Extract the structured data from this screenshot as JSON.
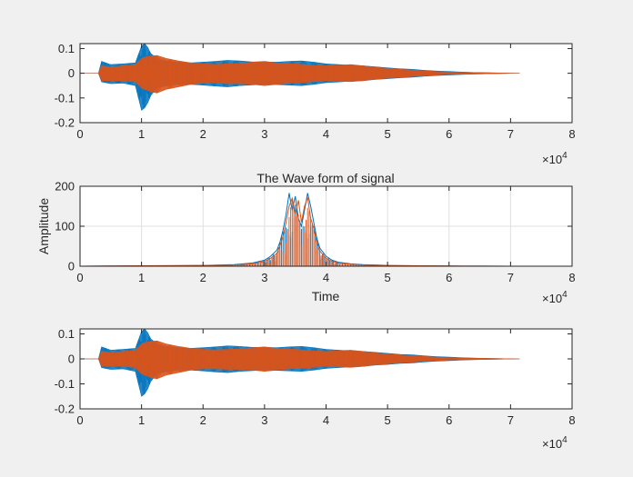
{
  "figure": {
    "background": "#f0f0f0",
    "axes_background": "#ffffff",
    "axis_color": "#262626",
    "grid_color": "#dfdfdf"
  },
  "chart_data": [
    {
      "type": "line",
      "title": "",
      "xlabel": "",
      "ylabel": "",
      "xlim": [
        0,
        80000
      ],
      "ylim": [
        -0.2,
        0.12
      ],
      "xticks": [
        0,
        10000,
        20000,
        30000,
        40000,
        50000,
        60000,
        70000,
        80000
      ],
      "xtick_labels": [
        "0",
        "1",
        "2",
        "3",
        "4",
        "5",
        "6",
        "7",
        "8"
      ],
      "yticks": [
        -0.2,
        -0.1,
        0,
        0.1
      ],
      "ytick_labels": [
        "-0.2",
        "-0.1",
        "0",
        "0.1"
      ],
      "x_exponent_label": "×10",
      "x_exponent_power": "4",
      "grid": false,
      "series": [
        {
          "color": "#0072bd",
          "x": [
            0,
            3000,
            3500,
            5000,
            7000,
            9000,
            10000,
            10500,
            11000,
            11500,
            12500,
            14000,
            16000,
            18000,
            20000,
            22000,
            24000,
            26000,
            28000,
            30000,
            32000,
            34000,
            36000,
            38000,
            40000,
            42000,
            44000,
            46000,
            48000,
            50000,
            52000,
            54000,
            56000,
            58000,
            60000,
            62000,
            64000,
            66000,
            68000,
            70000,
            71500
          ],
          "values": [
            0,
            0,
            0.048,
            0.035,
            0.038,
            0.042,
            0.11,
            0.12,
            0.105,
            0.08,
            0.06,
            0.05,
            0.045,
            0.042,
            0.045,
            0.048,
            0.052,
            0.05,
            0.046,
            0.046,
            0.045,
            0.048,
            0.05,
            0.045,
            0.038,
            0.035,
            0.032,
            0.03,
            0.026,
            0.022,
            0.018,
            0.016,
            0.012,
            0.009,
            0.007,
            0.005,
            0.003,
            0.002,
            0.001,
            0.0005,
            0
          ],
          "lower": [
            0,
            0,
            -0.035,
            -0.042,
            -0.04,
            -0.05,
            -0.15,
            -0.14,
            -0.12,
            -0.09,
            -0.06,
            -0.05,
            -0.045,
            -0.045,
            -0.048,
            -0.052,
            -0.055,
            -0.05,
            -0.047,
            -0.045,
            -0.046,
            -0.048,
            -0.05,
            -0.045,
            -0.038,
            -0.035,
            -0.032,
            -0.03,
            -0.025,
            -0.022,
            -0.018,
            -0.016,
            -0.012,
            -0.009,
            -0.007,
            -0.005,
            -0.003,
            -0.002,
            -0.001,
            -0.0005,
            0
          ]
        },
        {
          "color": "#d95319",
          "x": [
            0,
            3000,
            3500,
            5000,
            7000,
            9000,
            10000,
            10500,
            11000,
            11500,
            12500,
            14000,
            16000,
            18000,
            20000,
            22000,
            24000,
            26000,
            28000,
            30000,
            32000,
            34000,
            36000,
            38000,
            40000,
            42000,
            44000,
            46000,
            48000,
            50000,
            52000,
            54000,
            56000,
            58000,
            60000,
            62000,
            64000,
            66000,
            68000,
            70000,
            71500
          ],
          "values": [
            0,
            0,
            0.03,
            0.025,
            0.03,
            0.035,
            0.06,
            0.065,
            0.068,
            0.07,
            0.072,
            0.06,
            0.05,
            0.042,
            0.038,
            0.036,
            0.038,
            0.04,
            0.045,
            0.048,
            0.042,
            0.04,
            0.036,
            0.032,
            0.03,
            0.032,
            0.035,
            0.03,
            0.024,
            0.02,
            0.016,
            0.013,
            0.01,
            0.007,
            0.005,
            0.004,
            0.003,
            0.002,
            0.001,
            0.0005,
            0
          ],
          "lower": [
            0,
            0,
            -0.03,
            -0.03,
            -0.03,
            -0.035,
            -0.06,
            -0.065,
            -0.07,
            -0.075,
            -0.08,
            -0.065,
            -0.055,
            -0.045,
            -0.04,
            -0.04,
            -0.042,
            -0.042,
            -0.045,
            -0.05,
            -0.045,
            -0.04,
            -0.038,
            -0.034,
            -0.03,
            -0.032,
            -0.034,
            -0.03,
            -0.024,
            -0.02,
            -0.016,
            -0.013,
            -0.01,
            -0.007,
            -0.005,
            -0.004,
            -0.003,
            -0.002,
            -0.001,
            -0.0005,
            0
          ]
        }
      ]
    },
    {
      "type": "line",
      "title": "The Wave form of signal",
      "xlabel": "Time",
      "ylabel": "Amplitude",
      "xlim": [
        0,
        80000
      ],
      "ylim": [
        0,
        200
      ],
      "xticks": [
        0,
        10000,
        20000,
        30000,
        40000,
        50000,
        60000,
        70000,
        80000
      ],
      "xtick_labels": [
        "0",
        "1",
        "2",
        "3",
        "4",
        "5",
        "6",
        "7",
        "8"
      ],
      "yticks": [
        0,
        100,
        200
      ],
      "ytick_labels": [
        "0",
        "100",
        "200"
      ],
      "x_exponent_label": "×10",
      "x_exponent_power": "4",
      "grid": true,
      "series": [
        {
          "color": "#0072bd",
          "x": [
            0,
            5000,
            10000,
            15000,
            20000,
            25000,
            28000,
            30000,
            31000,
            32000,
            32500,
            33000,
            33500,
            34000,
            34500,
            35000,
            35500,
            36000,
            36500,
            37000,
            37500,
            38000,
            38500,
            39000,
            40000,
            41000,
            42000,
            44000,
            46000,
            48000,
            50000,
            55000,
            60000,
            65000,
            70000,
            71500,
            80000
          ],
          "values": [
            0,
            0.5,
            1,
            1.5,
            2,
            4,
            8,
            15,
            25,
            40,
            60,
            90,
            130,
            183,
            140,
            175,
            120,
            100,
            140,
            183,
            150,
            110,
            70,
            45,
            25,
            15,
            10,
            6,
            4,
            3,
            2,
            1,
            0.5,
            0.3,
            0.1,
            0,
            0
          ]
        },
        {
          "color": "#d95319",
          "x": [
            0,
            5000,
            10000,
            15000,
            20000,
            25000,
            28000,
            30000,
            31000,
            32000,
            32500,
            33000,
            33500,
            34000,
            34500,
            35000,
            35500,
            36000,
            36500,
            37000,
            37500,
            38000,
            38500,
            39000,
            40000,
            41000,
            42000,
            44000,
            46000,
            48000,
            50000,
            55000,
            60000,
            65000,
            70000,
            71500,
            80000
          ],
          "values": [
            0,
            0.5,
            1,
            1.5,
            2,
            3,
            6,
            12,
            20,
            32,
            50,
            75,
            110,
            150,
            170,
            130,
            165,
            110,
            150,
            172,
            120,
            95,
            60,
            38,
            20,
            12,
            8,
            5,
            3,
            2,
            1.5,
            1,
            0.5,
            0.3,
            0.1,
            0,
            0
          ]
        }
      ]
    },
    {
      "type": "line",
      "title": "",
      "xlabel": "",
      "ylabel": "",
      "xlim": [
        0,
        80000
      ],
      "ylim": [
        -0.2,
        0.12
      ],
      "xticks": [
        0,
        10000,
        20000,
        30000,
        40000,
        50000,
        60000,
        70000,
        80000
      ],
      "xtick_labels": [
        "0",
        "1",
        "2",
        "3",
        "4",
        "5",
        "6",
        "7",
        "8"
      ],
      "yticks": [
        -0.2,
        -0.1,
        0,
        0.1
      ],
      "ytick_labels": [
        "-0.2",
        "-0.1",
        "0",
        "0.1"
      ],
      "x_exponent_label": "×10",
      "x_exponent_power": "4",
      "grid": false,
      "series": [
        {
          "color": "#0072bd",
          "x": [
            0,
            3000,
            3500,
            5000,
            7000,
            9000,
            10000,
            10500,
            11000,
            11500,
            12500,
            14000,
            16000,
            18000,
            20000,
            22000,
            24000,
            26000,
            28000,
            30000,
            32000,
            34000,
            36000,
            38000,
            40000,
            42000,
            44000,
            46000,
            48000,
            50000,
            52000,
            54000,
            56000,
            58000,
            60000,
            62000,
            64000,
            66000,
            68000,
            70000,
            71500
          ],
          "values": [
            0,
            0,
            0.048,
            0.035,
            0.038,
            0.042,
            0.11,
            0.12,
            0.105,
            0.08,
            0.06,
            0.05,
            0.045,
            0.042,
            0.045,
            0.048,
            0.052,
            0.05,
            0.046,
            0.046,
            0.045,
            0.048,
            0.05,
            0.045,
            0.038,
            0.035,
            0.032,
            0.03,
            0.026,
            0.022,
            0.018,
            0.016,
            0.012,
            0.009,
            0.007,
            0.005,
            0.003,
            0.002,
            0.001,
            0.0005,
            0
          ],
          "lower": [
            0,
            0,
            -0.035,
            -0.042,
            -0.04,
            -0.05,
            -0.15,
            -0.14,
            -0.12,
            -0.09,
            -0.06,
            -0.05,
            -0.045,
            -0.045,
            -0.048,
            -0.052,
            -0.055,
            -0.05,
            -0.047,
            -0.045,
            -0.046,
            -0.048,
            -0.05,
            -0.045,
            -0.038,
            -0.035,
            -0.032,
            -0.03,
            -0.025,
            -0.022,
            -0.018,
            -0.016,
            -0.012,
            -0.009,
            -0.007,
            -0.005,
            -0.003,
            -0.002,
            -0.001,
            -0.0005,
            0
          ]
        },
        {
          "color": "#d95319",
          "x": [
            0,
            3000,
            3500,
            5000,
            7000,
            9000,
            10000,
            10500,
            11000,
            11500,
            12500,
            14000,
            16000,
            18000,
            20000,
            22000,
            24000,
            26000,
            28000,
            30000,
            32000,
            34000,
            36000,
            38000,
            40000,
            42000,
            44000,
            46000,
            48000,
            50000,
            52000,
            54000,
            56000,
            58000,
            60000,
            62000,
            64000,
            66000,
            68000,
            70000,
            71500
          ],
          "values": [
            0,
            0,
            0.03,
            0.025,
            0.03,
            0.035,
            0.06,
            0.065,
            0.068,
            0.07,
            0.072,
            0.06,
            0.05,
            0.042,
            0.038,
            0.036,
            0.038,
            0.04,
            0.045,
            0.048,
            0.042,
            0.04,
            0.036,
            0.032,
            0.03,
            0.032,
            0.035,
            0.03,
            0.024,
            0.02,
            0.016,
            0.013,
            0.01,
            0.007,
            0.005,
            0.004,
            0.003,
            0.002,
            0.001,
            0.0005,
            0
          ],
          "lower": [
            0,
            0,
            -0.03,
            -0.03,
            -0.03,
            -0.035,
            -0.06,
            -0.065,
            -0.07,
            -0.075,
            -0.08,
            -0.065,
            -0.055,
            -0.045,
            -0.04,
            -0.04,
            -0.042,
            -0.042,
            -0.045,
            -0.05,
            -0.045,
            -0.04,
            -0.038,
            -0.034,
            -0.03,
            -0.032,
            -0.034,
            -0.03,
            -0.024,
            -0.02,
            -0.016,
            -0.013,
            -0.01,
            -0.007,
            -0.005,
            -0.004,
            -0.003,
            -0.002,
            -0.001,
            -0.0005,
            0
          ]
        }
      ]
    }
  ]
}
